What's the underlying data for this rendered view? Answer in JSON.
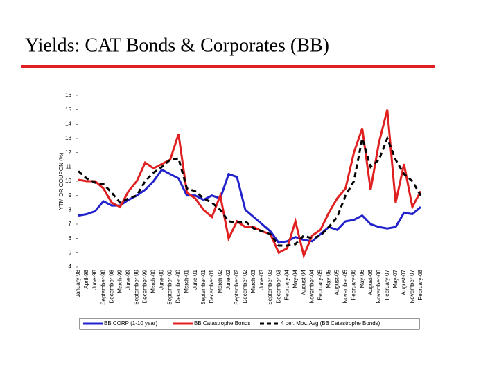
{
  "chart_data": {
    "type": "line",
    "title": "Yields: CAT Bonds & Corporates (BB)",
    "y_label": "YTM OR COUPON (%)",
    "categories": [
      "January-98",
      "April-98",
      "June-98",
      "September-98",
      "December-98",
      "March-99",
      "June-99",
      "September-99",
      "December-99",
      "March-00",
      "June-00",
      "September-00",
      "December-00",
      "March-01",
      "June-01",
      "September-01",
      "December-01",
      "March-02",
      "June-02",
      "September-02",
      "December-02",
      "March-03",
      "June-03",
      "September-03",
      "December-03",
      "February-04",
      "May-04",
      "August-04",
      "November-04",
      "February-05",
      "May-05",
      "August-05",
      "November-05",
      "February-06",
      "May-06",
      "August-06",
      "November-06",
      "February-07",
      "May-07",
      "August-07",
      "November-07",
      "February-08"
    ],
    "series": [
      {
        "name": "BB CORP (1-10 year)",
        "color": "#2222cc",
        "dash": false,
        "values": [
          7.6,
          7.7,
          7.9,
          8.6,
          8.3,
          8.3,
          8.7,
          9.0,
          9.4,
          10.0,
          10.8,
          10.5,
          10.2,
          9.0,
          9.0,
          8.7,
          9.0,
          8.8,
          10.5,
          10.3,
          8.0,
          7.5,
          7.0,
          6.5,
          5.7,
          5.8,
          6.1,
          5.9,
          5.8,
          6.3,
          6.8,
          6.6,
          7.2,
          7.3,
          7.6,
          7.0,
          6.8,
          6.7,
          6.8,
          7.8,
          7.7,
          8.2
        ]
      },
      {
        "name": "BB Catastrophe Bonds",
        "color": "#e02020",
        "dash": false,
        "values": [
          10.1,
          10.0,
          10.0,
          9.5,
          8.5,
          8.2,
          9.3,
          10.0,
          11.3,
          10.9,
          11.2,
          11.5,
          13.3,
          9.2,
          8.8,
          8.0,
          7.5,
          9.0,
          6.0,
          7.2,
          6.8,
          6.8,
          6.5,
          6.3,
          5.0,
          5.3,
          7.2,
          4.8,
          6.2,
          6.6,
          7.8,
          8.8,
          9.5,
          12.0,
          13.7,
          9.4,
          12.7,
          15.0,
          8.5,
          11.2,
          8.2,
          9.3
        ]
      },
      {
        "name": "4 per. Mov. Avg (BB Catastrophe Bonds)",
        "color": "#000000",
        "dash": true,
        "values": [
          10.7,
          10.2,
          9.9,
          9.8,
          9.2,
          8.5,
          8.8,
          9.0,
          10.0,
          10.6,
          11.0,
          11.5,
          11.6,
          9.5,
          9.3,
          8.8,
          8.5,
          8.0,
          7.2,
          7.1,
          7.2,
          6.7,
          6.5,
          6.3,
          5.5,
          5.5,
          5.6,
          6.2,
          6.0,
          6.2,
          6.8,
          7.5,
          9.0,
          10.0,
          13.0,
          11.0,
          11.5,
          13.0,
          11.5,
          10.5,
          10.0,
          9.0
        ]
      }
    ],
    "ylim": [
      4,
      16
    ],
    "yticks": [
      4,
      5,
      6,
      7,
      8,
      9,
      10,
      11,
      12,
      13,
      14,
      15,
      16
    ]
  }
}
